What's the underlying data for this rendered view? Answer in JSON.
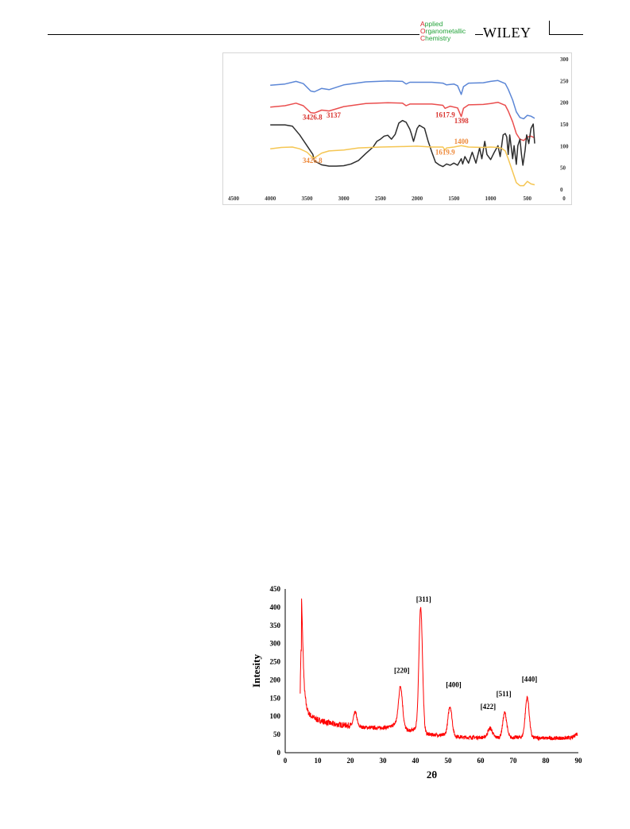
{
  "header": {
    "journal_lines": [
      {
        "cap": "A",
        "rest": "pplied"
      },
      {
        "cap": "O",
        "rest": "rganometallic"
      },
      {
        "cap": "C",
        "rest": "hemistry"
      }
    ],
    "publisher": "WILEY",
    "colors": {
      "journal_green": "#23a33a",
      "journal_red": "#d7262b"
    }
  },
  "chart_data": [
    {
      "type": "line",
      "title": "",
      "xlabel": "",
      "ylabel": "",
      "xlim": [
        4500,
        0
      ],
      "ylim": [
        0,
        300
      ],
      "x_ticks": [
        "4500",
        "4000",
        "3500",
        "3000",
        "2500",
        "2000",
        "1500",
        "1000",
        "500",
        "0"
      ],
      "y_ticks": [
        "0",
        "50",
        "100",
        "150",
        "200",
        "250",
        "300"
      ],
      "grid": false,
      "legend": "none",
      "series": [
        {
          "color": "#5b86d6",
          "points": [
            [
              4000,
              239
            ],
            [
              3800,
              242
            ],
            [
              3650,
              248
            ],
            [
              3550,
              243
            ],
            [
              3450,
              226
            ],
            [
              3400,
              224
            ],
            [
              3300,
              232
            ],
            [
              3200,
              229
            ],
            [
              3000,
              240
            ],
            [
              2700,
              247
            ],
            [
              2400,
              249
            ],
            [
              2200,
              248
            ],
            [
              2150,
              242
            ],
            [
              2100,
              246
            ],
            [
              1800,
              246
            ],
            [
              1650,
              244
            ],
            [
              1600,
              240
            ],
            [
              1500,
              242
            ],
            [
              1450,
              238
            ],
            [
              1400,
              218
            ],
            [
              1370,
              236
            ],
            [
              1300,
              244
            ],
            [
              1100,
              245
            ],
            [
              1000,
              248
            ],
            [
              900,
              250
            ],
            [
              800,
              243
            ],
            [
              760,
              230
            ],
            [
              700,
              205
            ],
            [
              650,
              178
            ],
            [
              600,
              165
            ],
            [
              550,
              162
            ],
            [
              500,
              170
            ],
            [
              450,
              168
            ],
            [
              400,
              163
            ]
          ]
        },
        {
          "color": "#ea4e4e",
          "points": [
            [
              4000,
              189
            ],
            [
              3800,
              192
            ],
            [
              3650,
              198
            ],
            [
              3550,
              192
            ],
            [
              3450,
              176
            ],
            [
              3400,
              175
            ],
            [
              3300,
              182
            ],
            [
              3200,
              180
            ],
            [
              3000,
              190
            ],
            [
              2700,
              197
            ],
            [
              2400,
              199
            ],
            [
              2200,
              198
            ],
            [
              2150,
              192
            ],
            [
              2100,
              196
            ],
            [
              1800,
              196
            ],
            [
              1650,
              193
            ],
            [
              1620,
              186
            ],
            [
              1550,
              191
            ],
            [
              1450,
              187
            ],
            [
              1400,
              167
            ],
            [
              1370,
              186
            ],
            [
              1300,
              194
            ],
            [
              1100,
              195
            ],
            [
              1000,
              197
            ],
            [
              900,
              200
            ],
            [
              800,
              193
            ],
            [
              760,
              180
            ],
            [
              700,
              155
            ],
            [
              650,
              128
            ],
            [
              600,
              115
            ],
            [
              550,
              112
            ],
            [
              500,
              120
            ],
            [
              450,
              122
            ],
            [
              400,
              118
            ]
          ]
        },
        {
          "color": "#2d2d2d",
          "points": [
            [
              4000,
              148
            ],
            [
              3800,
              148
            ],
            [
              3700,
              145
            ],
            [
              3600,
              125
            ],
            [
              3500,
              100
            ],
            [
              3420,
              80
            ],
            [
              3400,
              65
            ],
            [
              3300,
              56
            ],
            [
              3200,
              53
            ],
            [
              3100,
              53
            ],
            [
              3000,
              54
            ],
            [
              2900,
              58
            ],
            [
              2800,
              66
            ],
            [
              2700,
              82
            ],
            [
              2600,
              97
            ],
            [
              2550,
              110
            ],
            [
              2500,
              115
            ],
            [
              2450,
              122
            ],
            [
              2400,
              124
            ],
            [
              2350,
              115
            ],
            [
              2300,
              126
            ],
            [
              2250,
              152
            ],
            [
              2200,
              158
            ],
            [
              2150,
              154
            ],
            [
              2100,
              138
            ],
            [
              2080,
              128
            ],
            [
              2050,
              110
            ],
            [
              2000,
              140
            ],
            [
              1970,
              147
            ],
            [
              1900,
              140
            ],
            [
              1850,
              110
            ],
            [
              1800,
              85
            ],
            [
              1750,
              62
            ],
            [
              1700,
              56
            ],
            [
              1650,
              52
            ],
            [
              1600,
              58
            ],
            [
              1550,
              55
            ],
            [
              1500,
              60
            ],
            [
              1450,
              55
            ],
            [
              1400,
              70
            ],
            [
              1380,
              58
            ],
            [
              1350,
              75
            ],
            [
              1300,
              60
            ],
            [
              1250,
              85
            ],
            [
              1200,
              60
            ],
            [
              1150,
              95
            ],
            [
              1120,
              70
            ],
            [
              1080,
              110
            ],
            [
              1050,
              80
            ],
            [
              1000,
              68
            ],
            [
              950,
              85
            ],
            [
              900,
              100
            ],
            [
              870,
              75
            ],
            [
              830,
              125
            ],
            [
              800,
              128
            ],
            [
              780,
              120
            ],
            [
              760,
              80
            ],
            [
              740,
              125
            ],
            [
              700,
              70
            ],
            [
              680,
              100
            ],
            [
              650,
              57
            ],
            [
              630,
              100
            ],
            [
              600,
              115
            ],
            [
              580,
              80
            ],
            [
              560,
              55
            ],
            [
              530,
              90
            ],
            [
              510,
              125
            ],
            [
              480,
              105
            ],
            [
              450,
              140
            ],
            [
              420,
              150
            ],
            [
              400,
              105
            ]
          ]
        },
        {
          "color": "#f5c653",
          "points": [
            [
              4000,
              93
            ],
            [
              3850,
              96
            ],
            [
              3700,
              97
            ],
            [
              3600,
              93
            ],
            [
              3500,
              85
            ],
            [
              3420,
              72
            ],
            [
              3380,
              74
            ],
            [
              3300,
              83
            ],
            [
              3200,
              88
            ],
            [
              3000,
              90
            ],
            [
              2800,
              95
            ],
            [
              2500,
              97
            ],
            [
              2200,
              98
            ],
            [
              2000,
              99
            ],
            [
              1800,
              97
            ],
            [
              1650,
              97
            ],
            [
              1620,
              90
            ],
            [
              1600,
              95
            ],
            [
              1500,
              97
            ],
            [
              1400,
              100
            ],
            [
              1300,
              97
            ],
            [
              1100,
              96
            ],
            [
              1000,
              97
            ],
            [
              900,
              96
            ],
            [
              850,
              94
            ],
            [
              800,
              88
            ],
            [
              760,
              70
            ],
            [
              700,
              40
            ],
            [
              650,
              15
            ],
            [
              600,
              8
            ],
            [
              550,
              8
            ],
            [
              500,
              18
            ],
            [
              450,
              12
            ],
            [
              400,
              10
            ]
          ]
        }
      ],
      "annotations": [
        {
          "text": "3426.8",
          "x": 3426.8,
          "y": 160,
          "color": "#d9342f"
        },
        {
          "text": "3137",
          "x": 3137,
          "y": 165,
          "color": "#d9342f"
        },
        {
          "text": "1617.9",
          "x": 1617.9,
          "y": 166,
          "color": "#d9342f"
        },
        {
          "text": "1398",
          "x": 1398,
          "y": 152,
          "color": "#d9342f"
        },
        {
          "text": "3426.8",
          "x": 3426.8,
          "y": 60,
          "color": "#ee8a3c"
        },
        {
          "text": "1400",
          "x": 1400,
          "y": 104,
          "color": "#ee8a3c"
        },
        {
          "text": "1619.9",
          "x": 1619.9,
          "y": 80,
          "color": "#ee8a3c"
        }
      ]
    },
    {
      "type": "line",
      "title": "",
      "xlabel": "2θ",
      "ylabel": "Intesity",
      "xlim": [
        0,
        90
      ],
      "ylim": [
        0,
        450
      ],
      "x_ticks": [
        "0",
        "10",
        "20",
        "30",
        "40",
        "50",
        "60",
        "70",
        "80",
        "90"
      ],
      "y_ticks": [
        "0",
        "50",
        "100",
        "150",
        "200",
        "250",
        "300",
        "350",
        "400",
        "450"
      ],
      "grid": false,
      "legend": "none",
      "series": [
        {
          "color": "#ff0000",
          "baseline": [
            [
              5,
              190
            ],
            [
              5.5,
              180
            ],
            [
              6,
              160
            ],
            [
              6.5,
              130
            ],
            [
              7,
              112
            ],
            [
              8,
              100
            ],
            [
              10,
              90
            ],
            [
              15,
              78
            ],
            [
              18,
              76
            ],
            [
              20,
              75
            ],
            [
              24,
              70
            ],
            [
              28,
              68
            ],
            [
              32,
              70
            ],
            [
              34,
              80
            ],
            [
              38,
              60
            ],
            [
              40,
              65
            ],
            [
              44,
              50
            ],
            [
              50,
              48
            ],
            [
              55,
              42
            ],
            [
              60,
              42
            ],
            [
              65,
              42
            ],
            [
              70,
              42
            ],
            [
              75,
              42
            ],
            [
              80,
              40
            ],
            [
              85,
              40
            ],
            [
              90,
              42
            ]
          ],
          "peaks": [
            [
              4.85,
              200,
              0.25
            ],
            [
              5.3,
              110,
              0.3
            ],
            [
              21.5,
              38,
              0.5
            ],
            [
              35.4,
              110,
              0.6
            ],
            [
              41.6,
              340,
              0.55
            ],
            [
              50.6,
              80,
              0.6
            ],
            [
              62.9,
              25,
              0.7
            ],
            [
              67.4,
              68,
              0.6
            ],
            [
              74.3,
              110,
              0.6
            ],
            [
              89.5,
              10,
              0.6
            ]
          ]
        }
      ],
      "peak_labels": [
        {
          "text": "[311]",
          "x": 42.5,
          "y": 415
        },
        {
          "text": "[220]",
          "x": 35.8,
          "y": 220
        },
        {
          "text": "[400]",
          "x": 51.7,
          "y": 180
        },
        {
          "text": "[422]",
          "x": 62.3,
          "y": 120
        },
        {
          "text": "[511]",
          "x": 67.1,
          "y": 155
        },
        {
          "text": "[440]",
          "x": 75.0,
          "y": 195
        }
      ]
    }
  ]
}
